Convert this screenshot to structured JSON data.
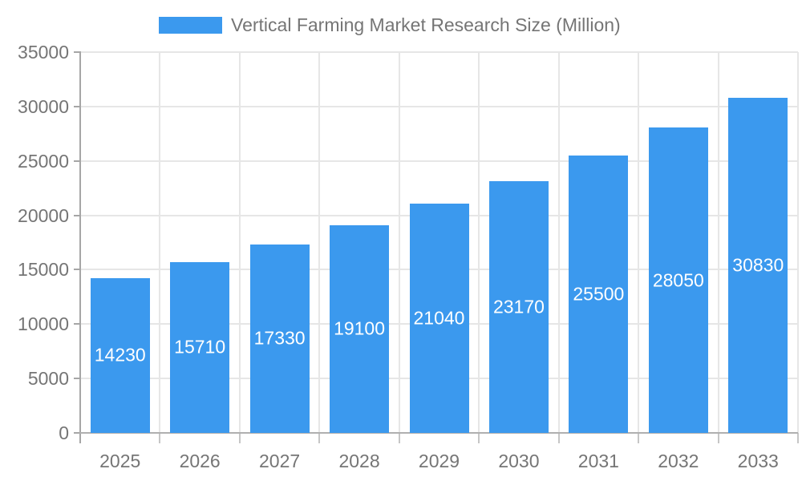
{
  "page": {
    "background_color": "#ffffff"
  },
  "legend": {
    "label": "Vertical Farming Market Research Size (Million)",
    "swatch_color": "#3B99EE",
    "position": "top"
  },
  "chart_data": {
    "type": "bar",
    "title": "Vertical Farming Market Research Size (Million)",
    "series_name": "Vertical Farming Market Research Size (Million)",
    "categories": [
      "2025",
      "2026",
      "2027",
      "2028",
      "2029",
      "2030",
      "2031",
      "2032",
      "2033"
    ],
    "values": [
      14230,
      15710,
      17330,
      19100,
      21040,
      23170,
      25500,
      28050,
      30830
    ],
    "value_labels": [
      "14230",
      "15710",
      "17330",
      "19100",
      "21040",
      "23170",
      "25500",
      "28050",
      "30830"
    ],
    "xlabel": "",
    "ylabel": "",
    "ylim": [
      0,
      35000
    ],
    "y_ticks": [
      0,
      5000,
      10000,
      15000,
      20000,
      25000,
      30000,
      35000
    ],
    "y_tick_labels": [
      "0",
      "5000",
      "10000",
      "15000",
      "20000",
      "25000",
      "30000",
      "35000"
    ],
    "grid": true,
    "legend_position": "top",
    "colors": {
      "bar": "#3B99EE",
      "value_label": "#ffffff",
      "axis_text": "#757575",
      "gridline": "#E6E6E6",
      "y_axis_line": "#A6A6A6",
      "x_axis_line": "#B0B0B0",
      "x_tick": "#C6C6C6"
    }
  }
}
